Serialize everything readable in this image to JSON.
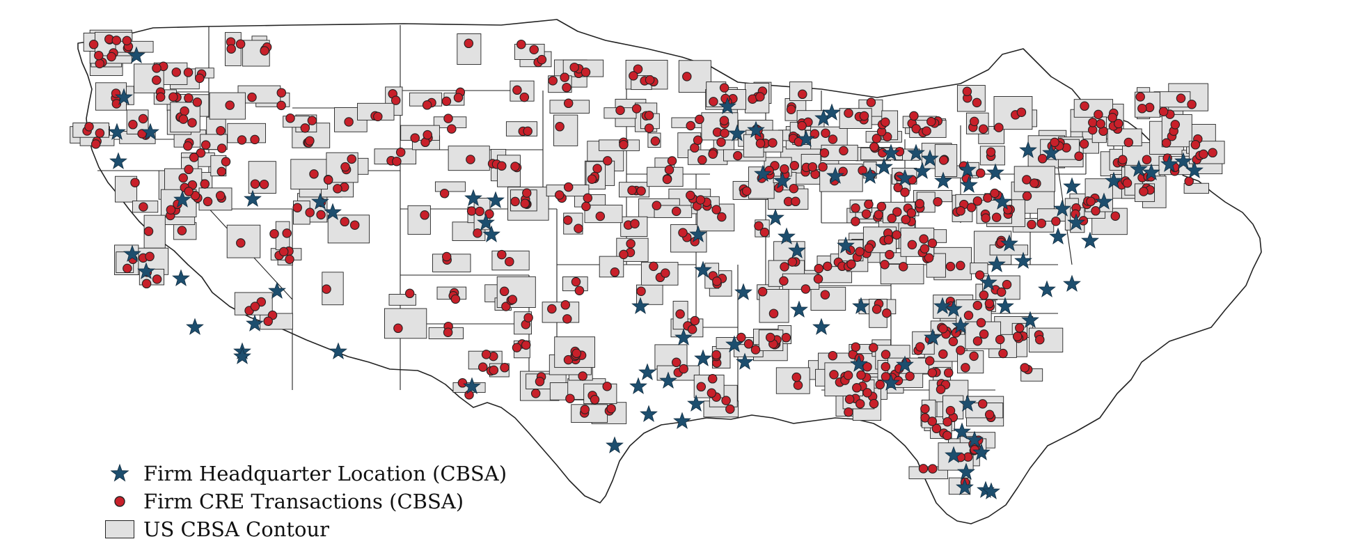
{
  "map": {
    "colors": {
      "background": "#ffffff",
      "cbsa_fill": "#e1e1e1",
      "boundary": "#222222",
      "hq_star": "#1d4e6e",
      "transaction_dot": "#c8202a"
    }
  },
  "legend": {
    "items": [
      {
        "label": "Firm Headquarter Location (CBSA)",
        "icon": "navy-star-icon"
      },
      {
        "label": "Firm CRE Transactions (CBSA)",
        "icon": "red-dot-icon"
      },
      {
        "label": "US CBSA Contour",
        "icon": "gray-box-icon"
      }
    ]
  }
}
